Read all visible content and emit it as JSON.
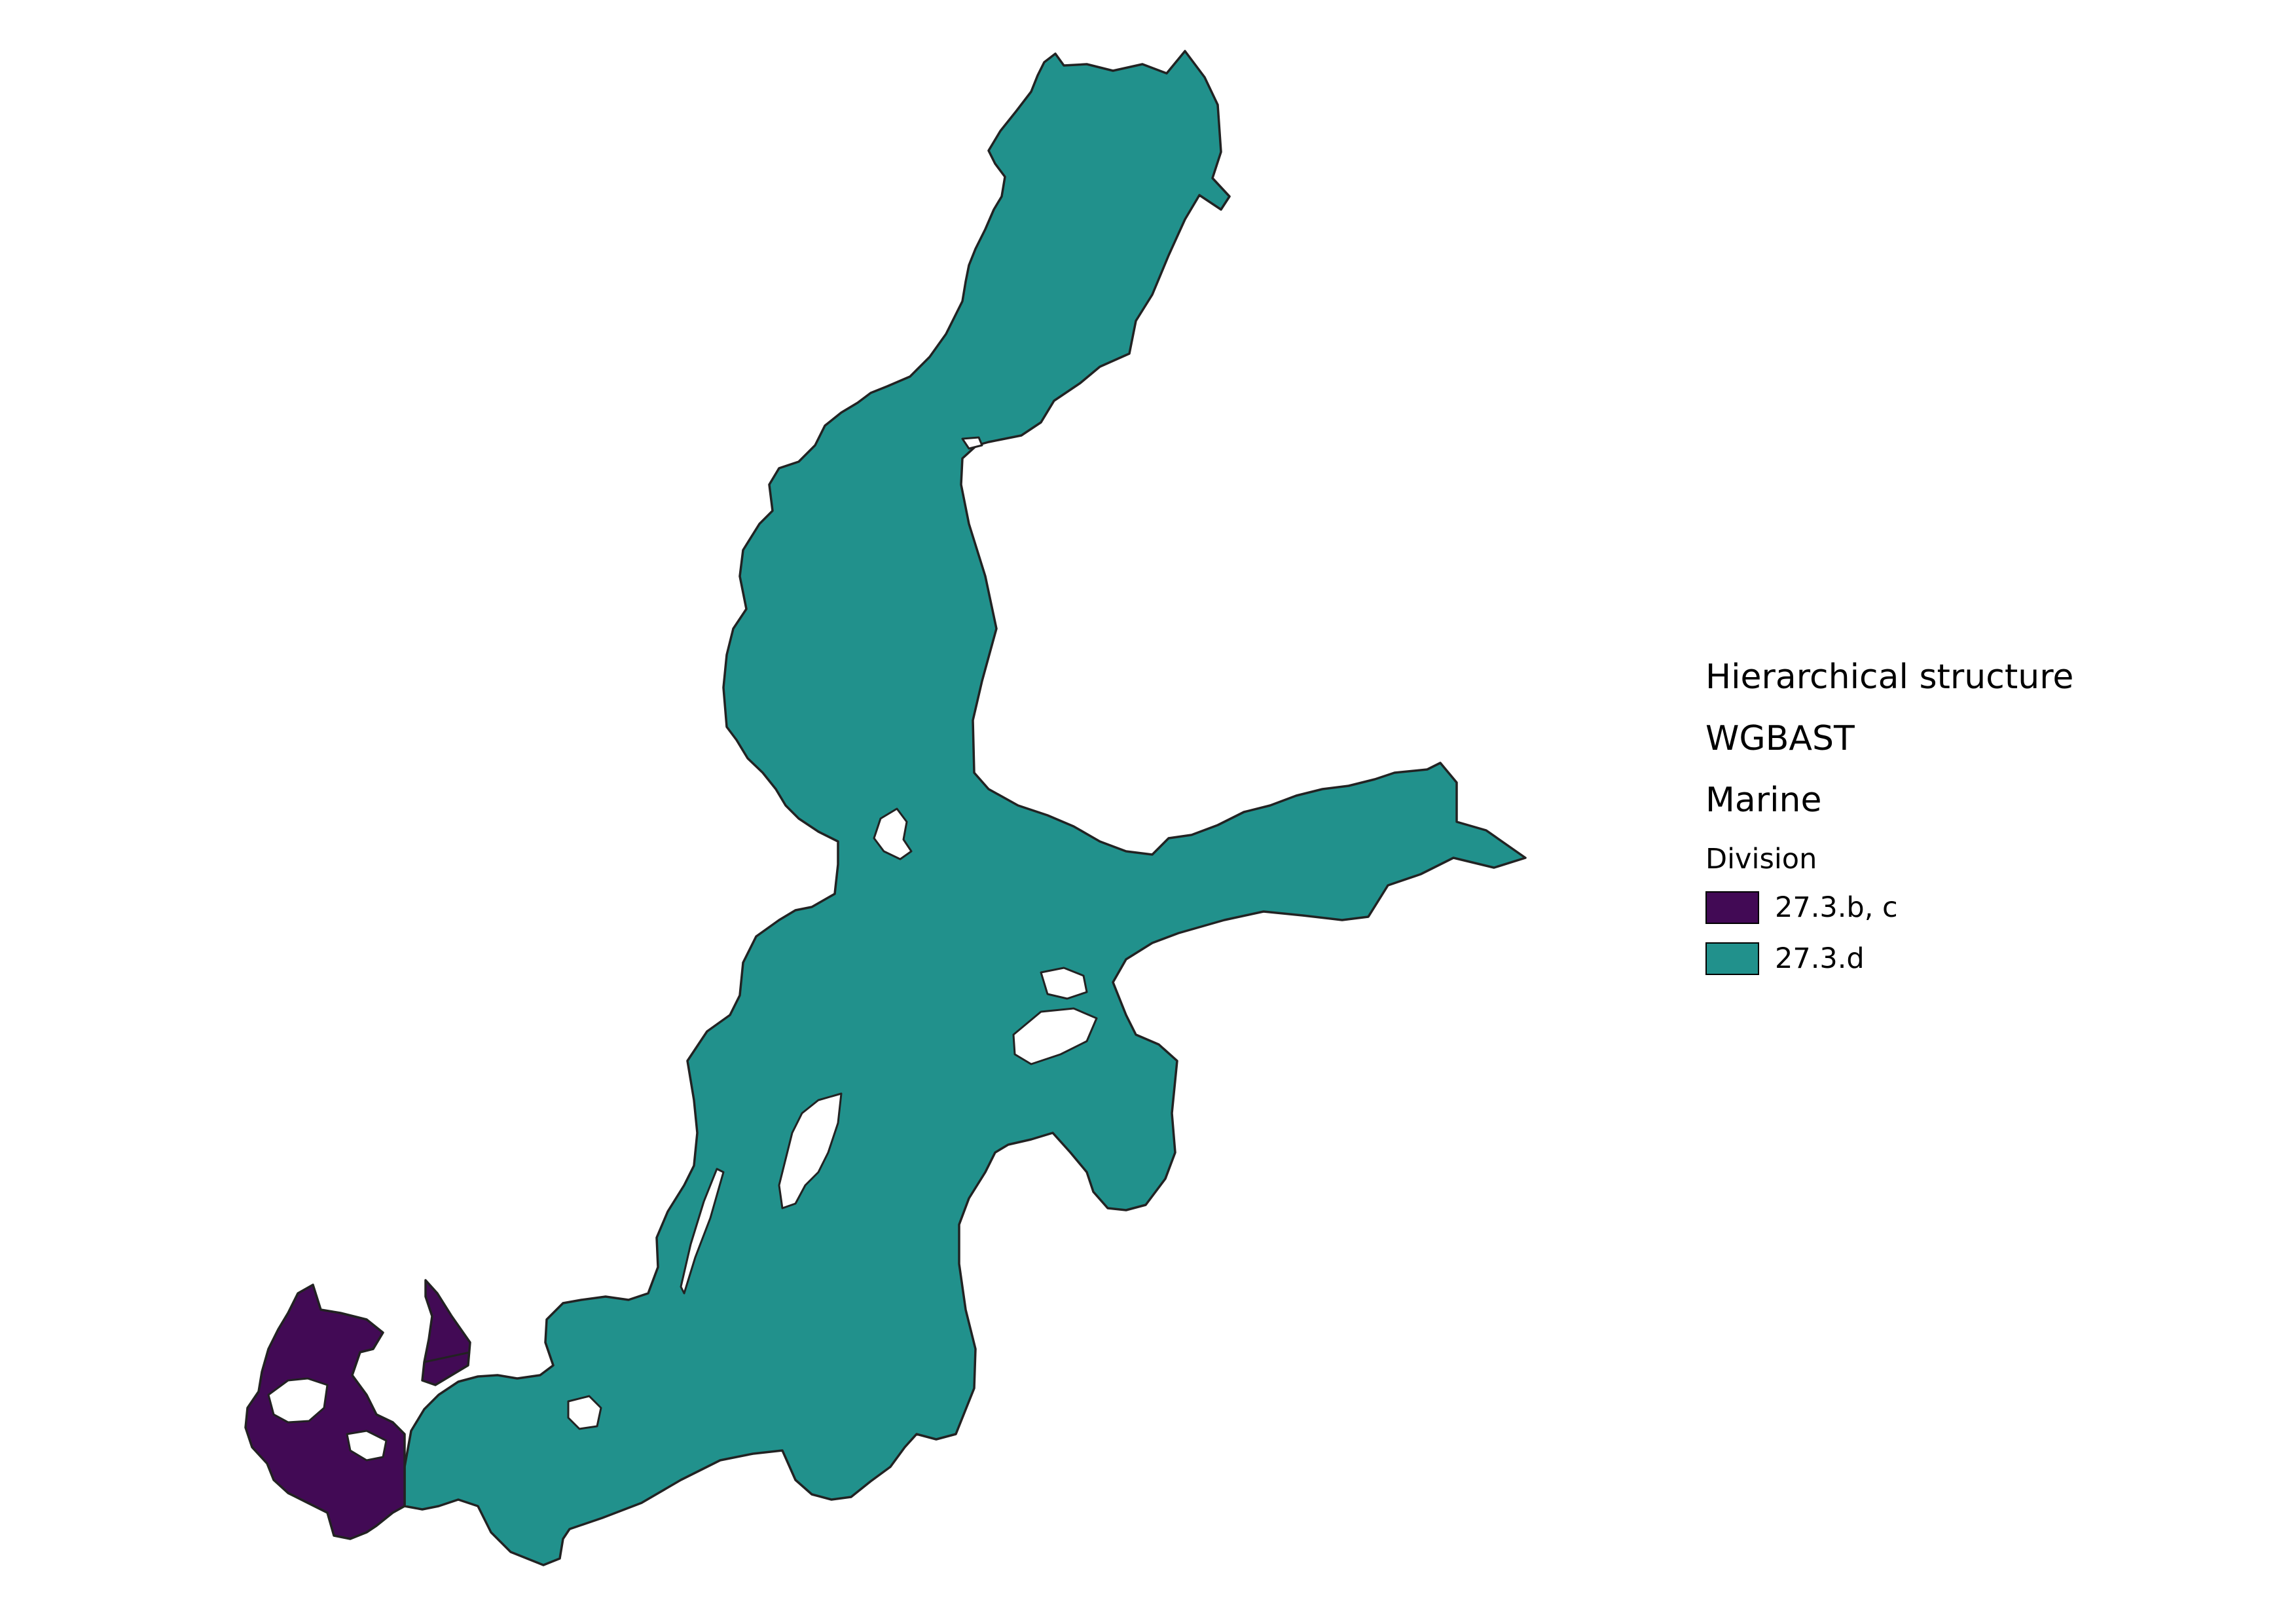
{
  "legend": {
    "title": "Hierarchical structure",
    "subtitle_1": "WGBAST",
    "subtitle_2": "Marine",
    "group_label": "Division",
    "items": [
      {
        "label": "27.3.b, c",
        "color": "#420a55",
        "feature": "western-baltic-division"
      },
      {
        "label": "27.3.d",
        "color": "#21918c",
        "feature": "main-baltic-division"
      }
    ]
  },
  "map": {
    "background_color": "#ffffff",
    "outline_color": "#222222"
  }
}
